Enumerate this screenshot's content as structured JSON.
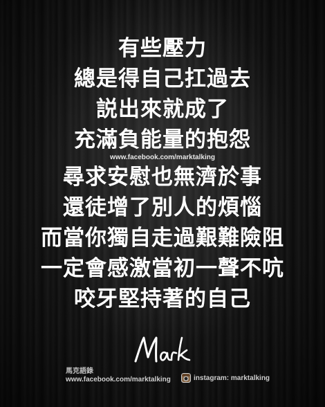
{
  "poem": {
    "lines": [
      "有些壓力",
      "總是得自己扛過去",
      "説出來就成了",
      "充滿負能量的抱怨",
      "尋求安慰也無濟於事",
      "還徒增了別人的煩惱",
      "而當你獨自走過艱難險阻",
      "一定會感激當初一聲不吭",
      "咬牙堅持著的自己"
    ],
    "watermark": "www.facebook.com/marktalking"
  },
  "signature": "Mark",
  "footer": {
    "brand_name": "馬克語錄",
    "facebook": "www.facebook.com/marktalking",
    "instagram": "instagram: marktalking",
    "instagram_icon": "instagram-icon"
  },
  "colors": {
    "text": "#ffffff",
    "background": "#151515"
  }
}
